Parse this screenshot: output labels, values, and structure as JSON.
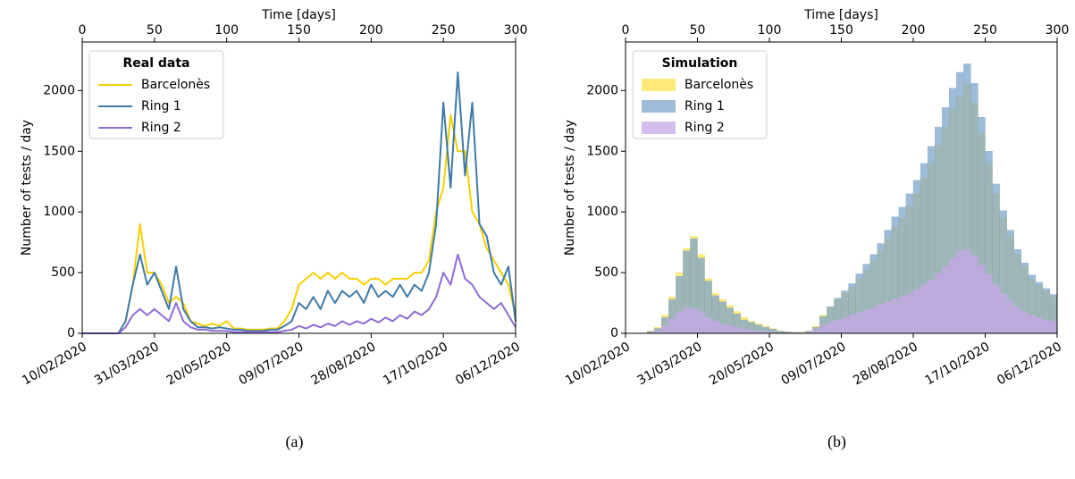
{
  "chart_data": [
    {
      "type": "line",
      "caption": "(a)",
      "xlabel": "Time [days]",
      "ylabel": "Number of tests / day",
      "legend_title": "Real data",
      "legend": "upper left",
      "xlim": [
        0,
        300
      ],
      "ylim": [
        0,
        2400
      ],
      "x2ticks": [
        0,
        50,
        100,
        150,
        200,
        250,
        300
      ],
      "xticks": [
        {
          "value": 0,
          "label": "10/02/2020"
        },
        {
          "value": 50,
          "label": "31/03/2020"
        },
        {
          "value": 100,
          "label": "20/05/2020"
        },
        {
          "value": 150,
          "label": "09/07/2020"
        },
        {
          "value": 200,
          "label": "28/08/2020"
        },
        {
          "value": 250,
          "label": "17/10/2020"
        },
        {
          "value": 300,
          "label": "06/12/2020"
        }
      ],
      "yticks": [
        0,
        500,
        1000,
        1500,
        2000
      ],
      "x": [
        0,
        5,
        10,
        15,
        20,
        25,
        30,
        35,
        40,
        45,
        50,
        55,
        60,
        65,
        70,
        75,
        80,
        85,
        90,
        95,
        100,
        105,
        110,
        115,
        120,
        125,
        130,
        135,
        140,
        145,
        150,
        155,
        160,
        165,
        170,
        175,
        180,
        185,
        190,
        195,
        200,
        205,
        210,
        215,
        220,
        225,
        230,
        235,
        240,
        245,
        250,
        255,
        260,
        265,
        270,
        275,
        280,
        285,
        290,
        295,
        300
      ],
      "series": [
        {
          "name": "Barcelonès",
          "color": "#f5d000",
          "values": [
            0,
            0,
            0,
            0,
            0,
            0,
            100,
            400,
            900,
            500,
            500,
            400,
            250,
            300,
            250,
            100,
            80,
            60,
            80,
            60,
            100,
            40,
            40,
            30,
            30,
            30,
            40,
            40,
            100,
            200,
            400,
            450,
            500,
            450,
            500,
            450,
            500,
            450,
            450,
            400,
            450,
            450,
            400,
            450,
            450,
            450,
            500,
            500,
            600,
            1000,
            1200,
            1800,
            1500,
            1500,
            1000,
            900,
            700,
            600,
            500,
            400,
            150
          ]
        },
        {
          "name": "Ring 1",
          "color": "#3f7aa8",
          "values": [
            0,
            0,
            0,
            0,
            0,
            0,
            100,
            400,
            650,
            400,
            500,
            350,
            200,
            550,
            200,
            100,
            50,
            50,
            40,
            50,
            40,
            30,
            30,
            20,
            20,
            20,
            30,
            30,
            60,
            100,
            250,
            200,
            300,
            200,
            350,
            250,
            350,
            300,
            350,
            250,
            400,
            300,
            350,
            300,
            400,
            300,
            400,
            350,
            500,
            900,
            1900,
            1200,
            2150,
            1300,
            1900,
            900,
            800,
            500,
            400,
            550,
            100
          ]
        },
        {
          "name": "Ring 2",
          "color": "#8e6bd6",
          "values": [
            0,
            0,
            0,
            0,
            0,
            0,
            50,
            150,
            200,
            150,
            200,
            150,
            100,
            250,
            100,
            50,
            30,
            30,
            20,
            20,
            20,
            10,
            10,
            10,
            10,
            10,
            10,
            10,
            20,
            30,
            60,
            40,
            70,
            50,
            80,
            60,
            100,
            70,
            100,
            80,
            120,
            90,
            130,
            100,
            150,
            120,
            180,
            150,
            200,
            300,
            500,
            400,
            650,
            450,
            400,
            300,
            250,
            200,
            250,
            150,
            50
          ]
        }
      ]
    },
    {
      "type": "histogram",
      "caption": "(b)",
      "xlabel": "Time [days]",
      "ylabel": "Number of tests / day",
      "legend_title": "Simulation",
      "legend": "upper left",
      "xlim": [
        0,
        300
      ],
      "ylim": [
        0,
        2400
      ],
      "x2ticks": [
        0,
        50,
        100,
        150,
        200,
        250,
        300
      ],
      "xticks": [
        {
          "value": 0,
          "label": "10/02/2020"
        },
        {
          "value": 50,
          "label": "31/03/2020"
        },
        {
          "value": 100,
          "label": "20/05/2020"
        },
        {
          "value": 150,
          "label": "09/07/2020"
        },
        {
          "value": 200,
          "label": "28/08/2020"
        },
        {
          "value": 250,
          "label": "17/10/2020"
        },
        {
          "value": 300,
          "label": "06/12/2020"
        }
      ],
      "yticks": [
        0,
        500,
        1000,
        1500,
        2000
      ],
      "bins": [
        0,
        5,
        10,
        15,
        20,
        25,
        30,
        35,
        40,
        45,
        50,
        55,
        60,
        65,
        70,
        75,
        80,
        85,
        90,
        95,
        100,
        105,
        110,
        115,
        120,
        125,
        130,
        135,
        140,
        145,
        150,
        155,
        160,
        165,
        170,
        175,
        180,
        185,
        190,
        195,
        200,
        205,
        210,
        215,
        220,
        225,
        230,
        235,
        240,
        245,
        250,
        255,
        260,
        265,
        270,
        275,
        280,
        285,
        290,
        295,
        300
      ],
      "series": [
        {
          "name": "Barcelonès",
          "color": "#fde34f",
          "values": [
            0,
            0,
            0,
            20,
            50,
            150,
            300,
            500,
            700,
            800,
            650,
            450,
            330,
            280,
            230,
            180,
            130,
            100,
            80,
            60,
            40,
            20,
            15,
            10,
            10,
            20,
            60,
            150,
            220,
            280,
            330,
            380,
            450,
            520,
            600,
            680,
            780,
            880,
            950,
            1050,
            1150,
            1280,
            1400,
            1550,
            1700,
            1850,
            1950,
            2050,
            1900,
            1650,
            1400,
            1150,
            950,
            800,
            650,
            550,
            450,
            400,
            350,
            300
          ]
        },
        {
          "name": "Ring 1",
          "color": "#7ea6c9",
          "values": [
            0,
            0,
            0,
            15,
            40,
            130,
            280,
            470,
            680,
            780,
            620,
            430,
            310,
            260,
            210,
            160,
            110,
            90,
            70,
            50,
            35,
            18,
            12,
            8,
            8,
            18,
            50,
            140,
            220,
            290,
            350,
            410,
            490,
            570,
            650,
            740,
            850,
            960,
            1040,
            1150,
            1260,
            1400,
            1540,
            1700,
            1860,
            2020,
            2150,
            2220,
            2060,
            1780,
            1500,
            1230,
            1010,
            850,
            690,
            580,
            480,
            420,
            370,
            320
          ]
        },
        {
          "name": "Ring 2",
          "color": "#c6a8e8",
          "values": [
            0,
            0,
            0,
            5,
            20,
            60,
            120,
            180,
            210,
            200,
            170,
            130,
            100,
            80,
            65,
            50,
            35,
            25,
            20,
            15,
            10,
            5,
            5,
            5,
            5,
            10,
            30,
            70,
            90,
            110,
            130,
            150,
            170,
            190,
            210,
            240,
            260,
            280,
            300,
            330,
            360,
            400,
            440,
            490,
            550,
            620,
            680,
            690,
            640,
            560,
            480,
            400,
            330,
            270,
            220,
            180,
            150,
            130,
            110,
            100
          ]
        }
      ]
    }
  ]
}
